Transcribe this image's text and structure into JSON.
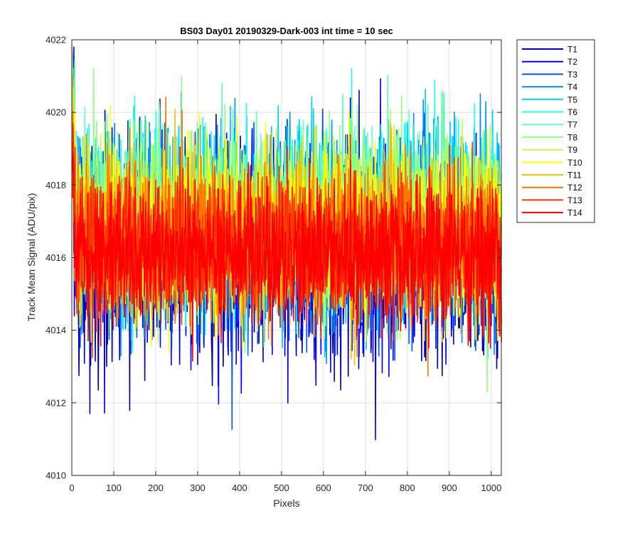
{
  "chart_data": {
    "type": "line",
    "title": "BS03 Day01 20190329-Dark-003 int time = 10 sec",
    "xlabel": "Pixels",
    "ylabel": "Track Mean Signal (ADU/pix)",
    "xlim": [
      0,
      1024
    ],
    "ylim": [
      4010,
      4022
    ],
    "xticks": [
      "0",
      "100",
      "200",
      "300",
      "400",
      "500",
      "600",
      "700",
      "800",
      "900",
      "1000"
    ],
    "yticks": [
      "4010",
      "4012",
      "4014",
      "4016",
      "4018",
      "4020",
      "4022"
    ],
    "grid": true,
    "legend_position": "outside-top-right",
    "series": [
      {
        "name": "T1",
        "color": "#0000aa",
        "mean": 4016.0,
        "spread": 1.55
      },
      {
        "name": "T2",
        "color": "#0000ff",
        "mean": 4016.4,
        "spread": 1.5
      },
      {
        "name": "T3",
        "color": "#0050ff",
        "mean": 4016.6,
        "spread": 1.45
      },
      {
        "name": "T4",
        "color": "#0090ff",
        "mean": 4016.8,
        "spread": 1.4
      },
      {
        "name": "T5",
        "color": "#00ccff",
        "mean": 4017.0,
        "spread": 1.35
      },
      {
        "name": "T6",
        "color": "#20ffee",
        "mean": 4017.1,
        "spread": 1.3
      },
      {
        "name": "T7",
        "color": "#60ffc0",
        "mean": 4017.1,
        "spread": 1.3
      },
      {
        "name": "T8",
        "color": "#90ff80",
        "mean": 4017.0,
        "spread": 1.3
      },
      {
        "name": "T9",
        "color": "#c0ff40",
        "mean": 4016.9,
        "spread": 1.25
      },
      {
        "name": "T10",
        "color": "#ffff00",
        "mean": 4016.7,
        "spread": 1.25
      },
      {
        "name": "T11",
        "color": "#ffbb00",
        "mean": 4016.5,
        "spread": 1.2
      },
      {
        "name": "T12",
        "color": "#ff7700",
        "mean": 4016.4,
        "spread": 1.15
      },
      {
        "name": "T13",
        "color": "#ff3300",
        "mean": 4016.3,
        "spread": 1.1
      },
      {
        "name": "T14",
        "color": "#ff0000",
        "mean": 4016.1,
        "spread": 1.05
      }
    ]
  }
}
